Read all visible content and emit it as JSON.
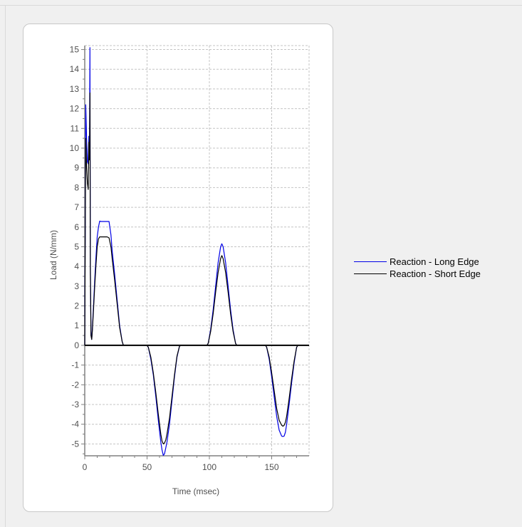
{
  "chart_data": {
    "type": "line",
    "title": "",
    "xlabel": "Time (msec)",
    "ylabel": "Load (N/mm)",
    "xlim": [
      0,
      180
    ],
    "ylim": [
      -5.6,
      15.2
    ],
    "x_ticks": [
      0,
      50,
      100,
      150
    ],
    "y_ticks": [
      -5,
      -4,
      -3,
      -2,
      -1,
      0,
      1,
      2,
      3,
      4,
      5,
      6,
      7,
      8,
      9,
      10,
      11,
      12,
      13,
      14,
      15
    ],
    "grid": true,
    "legend_position": "right",
    "series": [
      {
        "name": "Reaction - Long Edge",
        "color": "#0000e6",
        "x": [
          0,
          0.8,
          1.5,
          2.2,
          2.8,
          3.3,
          3.8,
          4.2,
          4.5,
          5.0,
          5.6,
          6.2,
          7,
          8,
          9,
          10,
          11,
          12,
          13,
          14,
          16,
          18,
          19.5,
          21,
          22,
          24,
          26,
          28,
          30,
          31,
          33,
          35,
          40,
          45,
          50,
          51,
          53,
          55,
          57,
          59,
          61,
          62,
          63,
          64,
          65,
          66,
          68,
          70,
          72,
          74,
          76,
          77,
          80,
          90,
          98,
          99,
          101,
          103,
          105,
          107,
          109,
          110,
          111,
          113,
          115,
          117,
          119,
          121,
          122,
          125,
          135,
          145,
          146,
          148,
          150,
          152,
          154,
          156,
          158,
          159,
          160,
          161,
          162,
          164,
          166,
          168,
          170,
          171,
          180
        ],
        "y": [
          0,
          12.2,
          10.5,
          9.3,
          9.2,
          10.6,
          9.8,
          15.1,
          4.0,
          0.5,
          0.3,
          0.9,
          2.0,
          3.3,
          4.5,
          5.5,
          6.0,
          6.3,
          6.28,
          6.28,
          6.28,
          6.28,
          6.28,
          5.6,
          4.8,
          3.6,
          2.3,
          1.0,
          0.2,
          0,
          0,
          0,
          0,
          0,
          0,
          -0.1,
          -0.7,
          -1.5,
          -2.6,
          -3.8,
          -4.9,
          -5.3,
          -5.58,
          -5.5,
          -5.2,
          -4.9,
          -4.0,
          -2.8,
          -1.6,
          -0.6,
          -0.05,
          0,
          0,
          0,
          0,
          0.1,
          0.8,
          1.8,
          3.0,
          4.2,
          5.0,
          5.15,
          5.0,
          4.2,
          3.0,
          1.8,
          0.8,
          0.1,
          0,
          0,
          0,
          0,
          -0.1,
          -0.7,
          -1.6,
          -2.6,
          -3.6,
          -4.3,
          -4.6,
          -4.62,
          -4.6,
          -4.4,
          -4.0,
          -3.0,
          -1.9,
          -0.9,
          -0.1,
          0,
          0
        ]
      },
      {
        "name": "Reaction - Short Edge",
        "color": "#000000",
        "x": [
          0,
          0.8,
          1.5,
          2.2,
          2.8,
          3.3,
          3.8,
          4.2,
          4.5,
          5.0,
          5.6,
          6.2,
          7,
          8,
          9,
          10,
          11,
          12,
          13,
          14,
          16,
          18,
          19.5,
          21,
          22,
          24,
          26,
          28,
          30,
          31,
          33,
          35,
          40,
          45,
          50,
          51,
          53,
          55,
          57,
          59,
          61,
          62,
          63,
          64,
          65,
          66,
          68,
          70,
          72,
          74,
          76,
          77,
          80,
          90,
          98,
          99,
          101,
          103,
          105,
          107,
          109,
          110,
          111,
          113,
          115,
          117,
          119,
          121,
          122,
          125,
          135,
          145,
          146,
          148,
          150,
          152,
          154,
          156,
          158,
          159,
          160,
          161,
          162,
          164,
          166,
          168,
          170,
          171,
          180
        ],
        "y": [
          0,
          10.5,
          9.0,
          8.2,
          7.9,
          10.3,
          9.4,
          12.8,
          3.6,
          0.5,
          0.3,
          0.8,
          1.8,
          3.0,
          4.1,
          5.0,
          5.4,
          5.5,
          5.5,
          5.5,
          5.5,
          5.5,
          5.45,
          5.0,
          4.4,
          3.3,
          2.1,
          0.9,
          0.2,
          0,
          0,
          0,
          0,
          0,
          0,
          -0.1,
          -0.6,
          -1.4,
          -2.4,
          -3.5,
          -4.5,
          -4.85,
          -5.0,
          -4.95,
          -4.8,
          -4.5,
          -3.7,
          -2.6,
          -1.5,
          -0.55,
          -0.05,
          0,
          0,
          0,
          0,
          0.1,
          0.7,
          1.6,
          2.7,
          3.7,
          4.4,
          4.55,
          4.4,
          3.7,
          2.7,
          1.6,
          0.7,
          0.1,
          0,
          0,
          0,
          0,
          -0.1,
          -0.6,
          -1.4,
          -2.3,
          -3.2,
          -3.8,
          -4.05,
          -4.1,
          -4.05,
          -3.9,
          -3.6,
          -2.7,
          -1.7,
          -0.8,
          -0.1,
          0,
          0
        ]
      }
    ]
  }
}
